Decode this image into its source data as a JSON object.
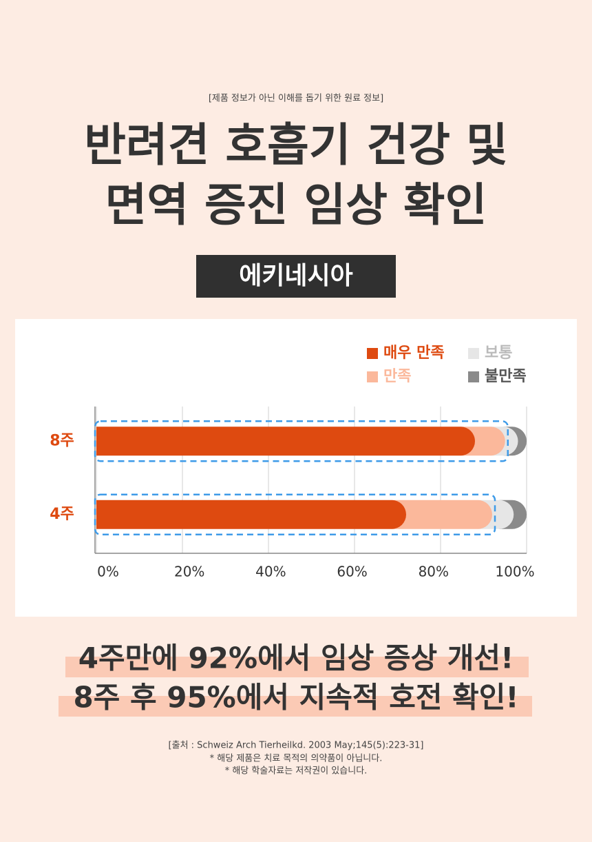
{
  "header": {
    "note": "[제품 정보가 아닌 이해를 돕기 위한 원료 정보]",
    "title_lines": [
      "반려견 호흡기 건강 및",
      "면역 증진 임상 확인"
    ],
    "product": "에키네시아"
  },
  "chart_data": {
    "type": "bar",
    "orientation": "horizontal",
    "stacked": true,
    "categories": [
      "8주",
      "4주"
    ],
    "series": [
      {
        "name": "매우 만족",
        "color": "#de4a10",
        "values": [
          88,
          72
        ]
      },
      {
        "name": "만족",
        "color": "#fbb89b",
        "values": [
          7,
          20
        ]
      },
      {
        "name": "보통",
        "color": "#e6e6e6",
        "values": [
          3,
          5
        ]
      },
      {
        "name": "불만족",
        "color": "#8a8a8a",
        "values": [
          2,
          3
        ]
      }
    ],
    "xlim": [
      0,
      100
    ],
    "xticks": [
      {
        "value": 0,
        "label": "0%"
      },
      {
        "value": 20,
        "label": "20%"
      },
      {
        "value": 40,
        "label": "40%"
      },
      {
        "value": 60,
        "label": "60%"
      },
      {
        "value": 80,
        "label": "80%"
      },
      {
        "value": 100,
        "label": "100%"
      }
    ],
    "grid": true,
    "legend": "top-right"
  },
  "highlights": [
    "4주만에 92%에서 임상 증상 개선!",
    "8주 후 95%에서 지속적 호전 확인!"
  ],
  "footer": [
    "[출처 : Schweiz Arch Tierheilkd. 2003 May;145(5):223-31]",
    "* 해당 제품은 치료 목적의 의약품이 아닙니다.",
    "* 해당 학술자료는 저작권이 있습니다."
  ]
}
